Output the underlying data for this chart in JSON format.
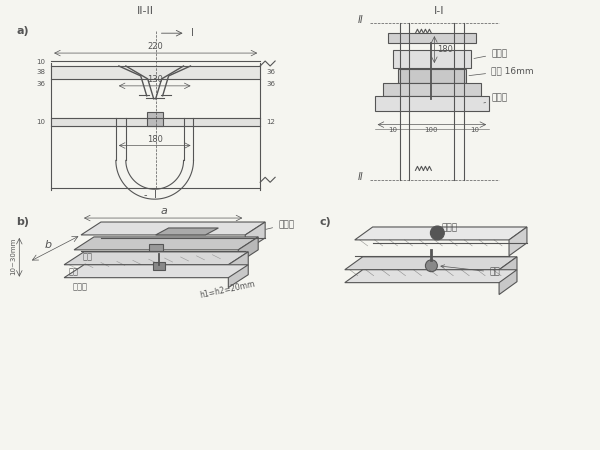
{
  "bg_color": "#f5f5f0",
  "line_color": "#555555",
  "title_a": "II-II",
  "title_a2": "I-I",
  "label_a": "a)",
  "label_b": "b)",
  "label_c": "c)",
  "dim_220": "220",
  "dim_130": "130",
  "dim_180": "180",
  "dim_180_2": "180",
  "dim_10": "10",
  "dim_38": "38",
  "dim_36": "36",
  "dim_12": "12",
  "dim_100": "100",
  "label_upper_plate": "上坦板",
  "label_middle_plate": "盖板 16mm",
  "label_lower_plate": "下坦板",
  "label_upper_plate_b": "上坦板",
  "label_rubber": "胶板",
  "label_lower_plate_b": "下坦板",
  "label_pin_hole": "销钉孔",
  "label_pin": "销钉",
  "dim_a": "a",
  "dim_b": "b",
  "dim_h1_h2": "h1=h2=20mm",
  "dim_10_100_10": "10  100  10",
  "label_jiao_ban": "胶板",
  "label_dian_ban": "坦板",
  "label_xia_dian_ban": "下坦板",
  "II_marker": "II",
  "I_marker": "I"
}
